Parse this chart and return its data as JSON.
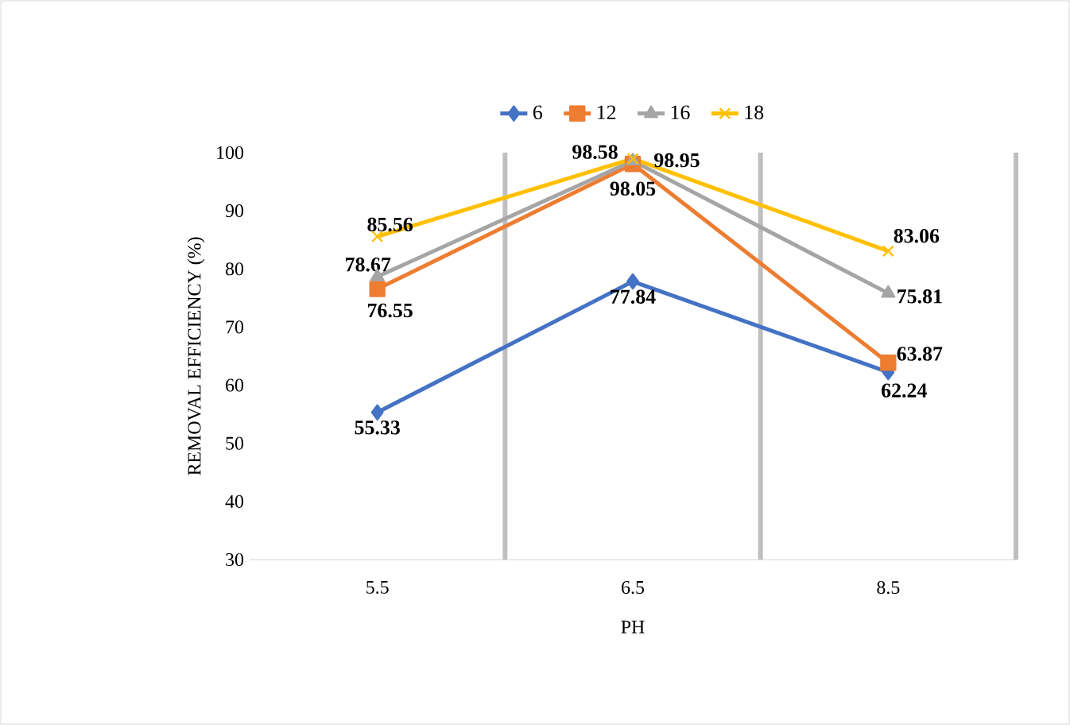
{
  "chart_data": {
    "type": "line",
    "xlabel": "PH",
    "ylabel": "REMOVAL EFFICIENCY (%)",
    "categories": [
      "5.5",
      "6.5",
      "8.5"
    ],
    "series": [
      {
        "name": "6",
        "color": "#4472c4",
        "marker": "diamond",
        "values": [
          55.33,
          77.84,
          62.24
        ]
      },
      {
        "name": "12",
        "color": "#ed7d31",
        "marker": "square",
        "values": [
          76.55,
          98.05,
          63.87
        ]
      },
      {
        "name": "16",
        "color": "#a5a5a5",
        "marker": "triangle",
        "values": [
          78.67,
          98.58,
          75.81
        ]
      },
      {
        "name": "18",
        "color": "#ffc000",
        "marker": "cross",
        "values": [
          85.56,
          98.95,
          83.06
        ]
      }
    ],
    "ylim": [
      30,
      100
    ],
    "yticks": [
      30,
      40,
      50,
      60,
      70,
      80,
      90,
      100
    ],
    "grid": "x",
    "legend": "top",
    "data_labels": true
  }
}
